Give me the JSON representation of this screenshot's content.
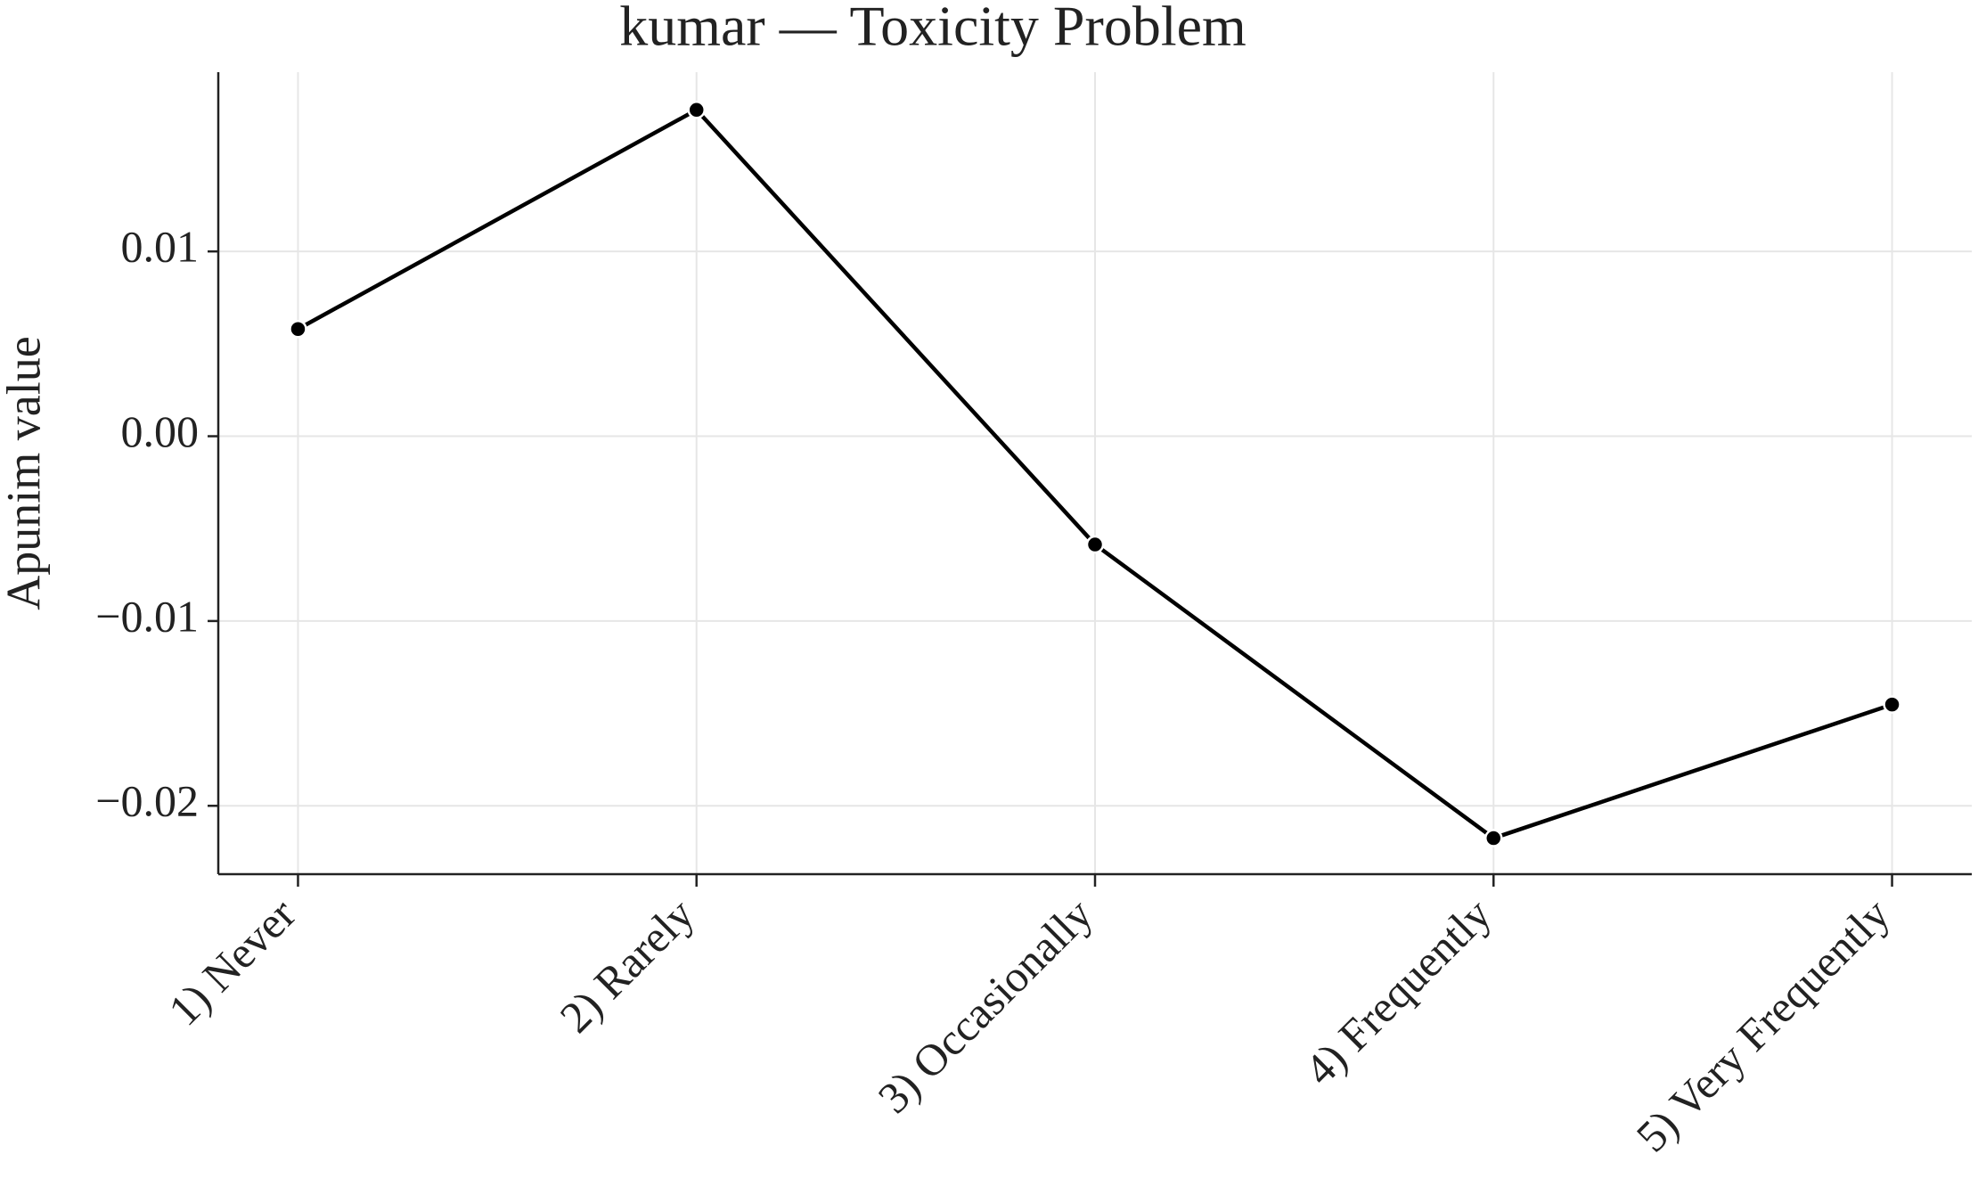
{
  "chart_data": {
    "type": "line",
    "title": "kumar — Toxicity Problem",
    "y_label": "Apunim value",
    "categories": [
      "1) Never",
      "2) Rarely",
      "3) Occasionally",
      "4) Frequently",
      "5) Very Frequently"
    ],
    "values": [
      0.0058,
      0.01766,
      -0.00586,
      -0.02175,
      -0.01452
    ],
    "color": "#000000",
    "ylim": [
      -0.0237,
      0.0197
    ],
    "yticks": [
      {
        "value": -0.02,
        "label": "−0.02"
      },
      {
        "value": -0.01,
        "label": "−0.01"
      },
      {
        "value": 0,
        "label": "0.00"
      },
      0.01
    ],
    "grid": true
  }
}
